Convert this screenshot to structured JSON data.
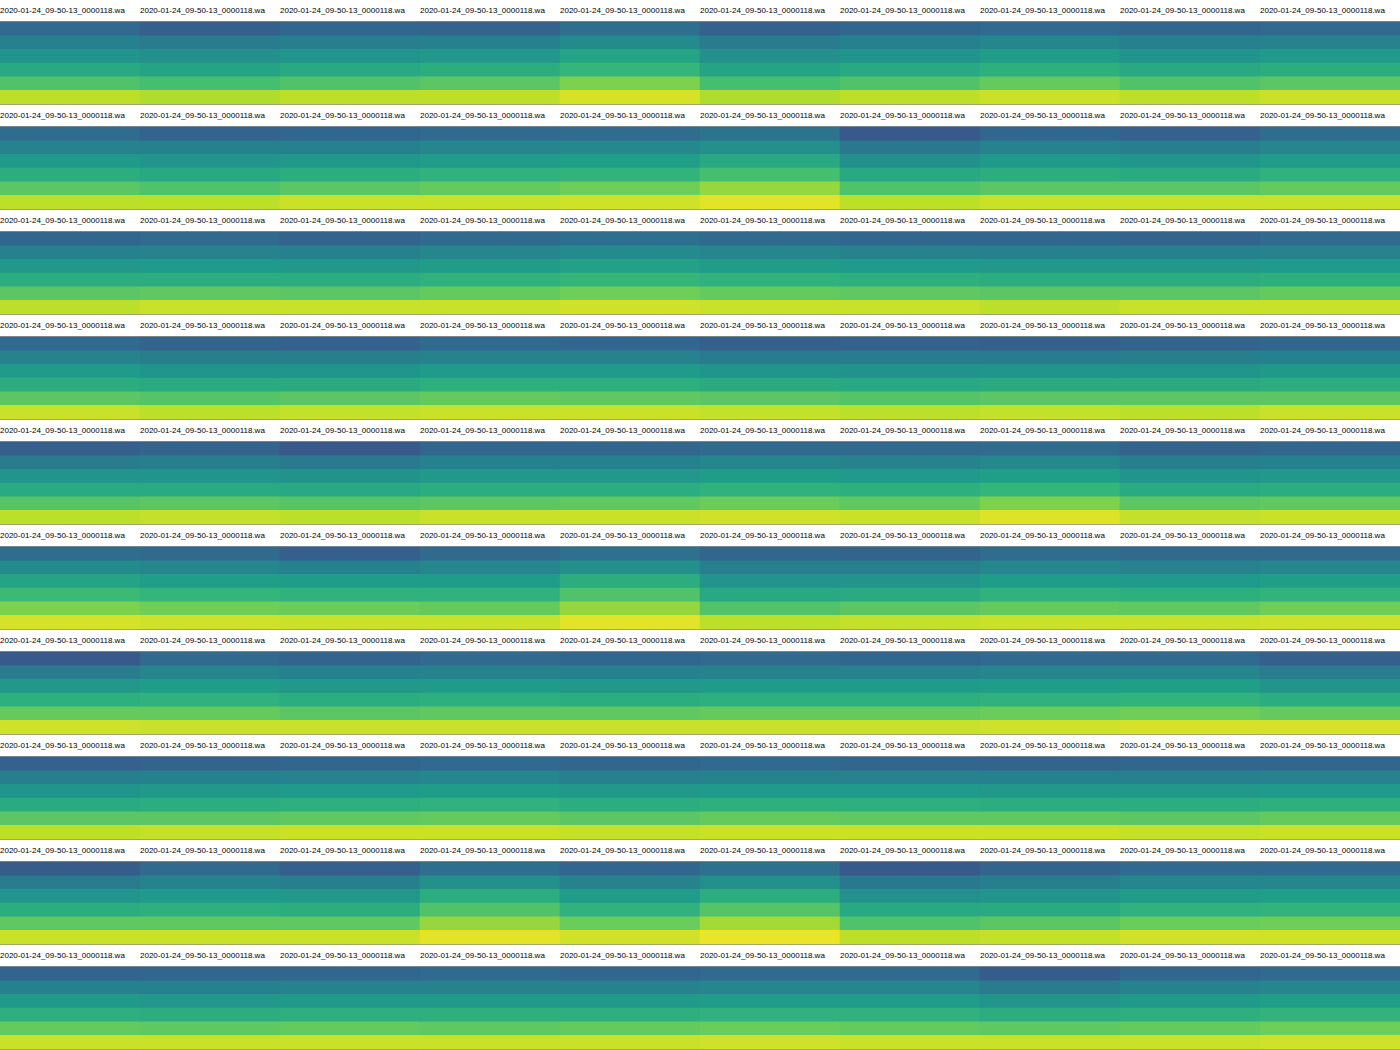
{
  "chart_data": {
    "type": "heatmap",
    "tick_labels": false,
    "color_range": [
      0,
      1
    ],
    "panels": [
      {
        "title": "2020-01-24_09-50-13_0000118.wa",
        "values": [
          0.34,
          0.44,
          0.52,
          0.6,
          0.72,
          0.9
        ]
      },
      {
        "title": "2020-01-24_09-50-13_0000118.wa",
        "values": [
          0.3,
          0.42,
          0.5,
          0.58,
          0.7,
          0.88
        ]
      },
      {
        "title": "2020-01-24_09-50-13_0000118.wa",
        "values": [
          0.33,
          0.43,
          0.52,
          0.6,
          0.72,
          0.9
        ]
      },
      {
        "title": "2020-01-24_09-50-13_0000118.wa",
        "values": [
          0.32,
          0.44,
          0.53,
          0.62,
          0.74,
          0.9
        ]
      },
      {
        "title": "2020-01-24_09-50-13_0000118.wa",
        "values": [
          0.36,
          0.48,
          0.58,
          0.66,
          0.8,
          0.94
        ]
      },
      {
        "title": "2020-01-24_09-50-13_0000118.wa",
        "values": [
          0.31,
          0.42,
          0.5,
          0.58,
          0.7,
          0.88
        ]
      },
      {
        "title": "2020-01-24_09-50-13_0000118.wa",
        "values": [
          0.33,
          0.44,
          0.52,
          0.6,
          0.72,
          0.9
        ]
      },
      {
        "title": "2020-01-24_09-50-13_0000118.wa",
        "values": [
          0.34,
          0.46,
          0.55,
          0.63,
          0.76,
          0.92
        ]
      },
      {
        "title": "2020-01-24_09-50-13_0000118.wa",
        "values": [
          0.33,
          0.44,
          0.52,
          0.6,
          0.72,
          0.9
        ]
      },
      {
        "title": "2020-01-24_09-50-13_0000118.wa",
        "values": [
          0.34,
          0.45,
          0.54,
          0.62,
          0.74,
          0.92
        ]
      },
      {
        "title": "2020-01-24_09-50-13_0000118.wa",
        "values": [
          0.35,
          0.45,
          0.54,
          0.62,
          0.74,
          0.9
        ]
      },
      {
        "title": "2020-01-24_09-50-13_0000118.wa",
        "values": [
          0.32,
          0.44,
          0.52,
          0.6,
          0.72,
          0.9
        ]
      },
      {
        "title": "2020-01-24_09-50-13_0000118.wa",
        "values": [
          0.33,
          0.44,
          0.53,
          0.62,
          0.74,
          0.92
        ]
      },
      {
        "title": "2020-01-24_09-50-13_0000118.wa",
        "values": [
          0.34,
          0.46,
          0.55,
          0.64,
          0.76,
          0.92
        ]
      },
      {
        "title": "2020-01-24_09-50-13_0000118.wa",
        "values": [
          0.35,
          0.47,
          0.56,
          0.65,
          0.78,
          0.93
        ]
      },
      {
        "title": "2020-01-24_09-50-13_0000118.wa",
        "values": [
          0.38,
          0.5,
          0.6,
          0.7,
          0.84,
          0.96
        ]
      },
      {
        "title": "2020-01-24_09-50-13_0000118.wa",
        "values": [
          0.28,
          0.4,
          0.5,
          0.6,
          0.72,
          0.9
        ]
      },
      {
        "title": "2020-01-24_09-50-13_0000118.wa",
        "values": [
          0.33,
          0.45,
          0.54,
          0.62,
          0.74,
          0.92
        ]
      },
      {
        "title": "2020-01-24_09-50-13_0000118.wa",
        "values": [
          0.31,
          0.43,
          0.52,
          0.61,
          0.74,
          0.92
        ]
      },
      {
        "title": "2020-01-24_09-50-13_0000118.wa",
        "values": [
          0.35,
          0.46,
          0.55,
          0.64,
          0.76,
          0.92
        ]
      },
      {
        "title": "2020-01-24_09-50-13_0000118.wa",
        "values": [
          0.33,
          0.44,
          0.53,
          0.62,
          0.74,
          0.9
        ]
      },
      {
        "title": "2020-01-24_09-50-13_0000118.wa",
        "values": [
          0.34,
          0.45,
          0.54,
          0.62,
          0.75,
          0.92
        ]
      },
      {
        "title": "2020-01-24_09-50-13_0000118.wa",
        "values": [
          0.32,
          0.44,
          0.53,
          0.62,
          0.74,
          0.92
        ]
      },
      {
        "title": "2020-01-24_09-50-13_0000118.wa",
        "values": [
          0.34,
          0.46,
          0.55,
          0.64,
          0.76,
          0.92
        ]
      },
      {
        "title": "2020-01-24_09-50-13_0000118.wa",
        "values": [
          0.36,
          0.48,
          0.57,
          0.66,
          0.78,
          0.93
        ]
      },
      {
        "title": "2020-01-24_09-50-13_0000118.wa",
        "values": [
          0.34,
          0.46,
          0.55,
          0.64,
          0.76,
          0.92
        ]
      },
      {
        "title": "2020-01-24_09-50-13_0000118.wa",
        "values": [
          0.33,
          0.45,
          0.54,
          0.63,
          0.75,
          0.92
        ]
      },
      {
        "title": "2020-01-24_09-50-13_0000118.wa",
        "values": [
          0.33,
          0.44,
          0.53,
          0.62,
          0.74,
          0.9
        ]
      },
      {
        "title": "2020-01-24_09-50-13_0000118.wa",
        "values": [
          0.32,
          0.44,
          0.53,
          0.62,
          0.74,
          0.92
        ]
      },
      {
        "title": "2020-01-24_09-50-13_0000118.wa",
        "values": [
          0.34,
          0.45,
          0.54,
          0.63,
          0.76,
          0.92
        ]
      },
      {
        "title": "2020-01-24_09-50-13_0000118.wa",
        "values": [
          0.34,
          0.45,
          0.54,
          0.62,
          0.74,
          0.92
        ]
      },
      {
        "title": "2020-01-24_09-50-13_0000118.wa",
        "values": [
          0.32,
          0.43,
          0.52,
          0.61,
          0.73,
          0.9
        ]
      },
      {
        "title": "2020-01-24_09-50-13_0000118.wa",
        "values": [
          0.31,
          0.43,
          0.52,
          0.61,
          0.74,
          0.91
        ]
      },
      {
        "title": "2020-01-24_09-50-13_0000118.wa",
        "values": [
          0.34,
          0.45,
          0.54,
          0.63,
          0.76,
          0.92
        ]
      },
      {
        "title": "2020-01-24_09-50-13_0000118.wa",
        "values": [
          0.33,
          0.45,
          0.54,
          0.63,
          0.75,
          0.92
        ]
      },
      {
        "title": "2020-01-24_09-50-13_0000118.wa",
        "values": [
          0.3,
          0.42,
          0.52,
          0.61,
          0.74,
          0.91
        ]
      },
      {
        "title": "2020-01-24_09-50-13_0000118.wa",
        "values": [
          0.31,
          0.42,
          0.51,
          0.6,
          0.73,
          0.9
        ]
      },
      {
        "title": "2020-01-24_09-50-13_0000118.wa",
        "values": [
          0.3,
          0.42,
          0.52,
          0.61,
          0.74,
          0.91
        ]
      },
      {
        "title": "2020-01-24_09-50-13_0000118.wa",
        "values": [
          0.32,
          0.43,
          0.52,
          0.61,
          0.74,
          0.9
        ]
      },
      {
        "title": "2020-01-24_09-50-13_0000118.wa",
        "values": [
          0.33,
          0.44,
          0.53,
          0.62,
          0.74,
          0.92
        ]
      },
      {
        "title": "2020-01-24_09-50-13_0000118.wa",
        "values": [
          0.3,
          0.42,
          0.52,
          0.61,
          0.73,
          0.9
        ]
      },
      {
        "title": "2020-01-24_09-50-13_0000118.wa",
        "values": [
          0.32,
          0.43,
          0.52,
          0.61,
          0.74,
          0.91
        ]
      },
      {
        "title": "2020-01-24_09-50-13_0000118.wa",
        "values": [
          0.28,
          0.41,
          0.51,
          0.6,
          0.73,
          0.9
        ]
      },
      {
        "title": "2020-01-24_09-50-13_0000118.wa",
        "values": [
          0.33,
          0.44,
          0.53,
          0.62,
          0.74,
          0.92
        ]
      },
      {
        "title": "2020-01-24_09-50-13_0000118.wa",
        "values": [
          0.33,
          0.44,
          0.53,
          0.62,
          0.75,
          0.92
        ]
      },
      {
        "title": "2020-01-24_09-50-13_0000118.wa",
        "values": [
          0.34,
          0.46,
          0.55,
          0.64,
          0.77,
          0.93
        ]
      },
      {
        "title": "2020-01-24_09-50-13_0000118.wa",
        "values": [
          0.34,
          0.45,
          0.54,
          0.63,
          0.75,
          0.92
        ]
      },
      {
        "title": "2020-01-24_09-50-13_0000118.wa",
        "values": [
          0.35,
          0.47,
          0.56,
          0.66,
          0.8,
          0.95
        ]
      },
      {
        "title": "2020-01-24_09-50-13_0000118.wa",
        "values": [
          0.32,
          0.43,
          0.52,
          0.61,
          0.74,
          0.91
        ]
      },
      {
        "title": "2020-01-24_09-50-13_0000118.wa",
        "values": [
          0.33,
          0.44,
          0.53,
          0.62,
          0.75,
          0.92
        ]
      },
      {
        "title": "2020-01-24_09-50-13_0000118.wa",
        "values": [
          0.35,
          0.48,
          0.58,
          0.68,
          0.8,
          0.94
        ]
      },
      {
        "title": "2020-01-24_09-50-13_0000118.wa",
        "values": [
          0.34,
          0.46,
          0.56,
          0.66,
          0.78,
          0.93
        ]
      },
      {
        "title": "2020-01-24_09-50-13_0000118.wa",
        "values": [
          0.3,
          0.44,
          0.55,
          0.64,
          0.77,
          0.92
        ]
      },
      {
        "title": "2020-01-24_09-50-13_0000118.wa",
        "values": [
          0.34,
          0.46,
          0.55,
          0.64,
          0.76,
          0.92
        ]
      },
      {
        "title": "2020-01-24_09-50-13_0000118.wa",
        "values": [
          0.37,
          0.5,
          0.62,
          0.72,
          0.84,
          0.96
        ]
      },
      {
        "title": "2020-01-24_09-50-13_0000118.wa",
        "values": [
          0.33,
          0.43,
          0.52,
          0.6,
          0.72,
          0.9
        ]
      },
      {
        "title": "2020-01-24_09-50-13_0000118.wa",
        "values": [
          0.32,
          0.43,
          0.52,
          0.61,
          0.74,
          0.91
        ]
      },
      {
        "title": "2020-01-24_09-50-13_0000118.wa",
        "values": [
          0.35,
          0.46,
          0.55,
          0.64,
          0.76,
          0.92
        ]
      },
      {
        "title": "2020-01-24_09-50-13_0000118.wa",
        "values": [
          0.34,
          0.45,
          0.54,
          0.63,
          0.75,
          0.92
        ]
      },
      {
        "title": "2020-01-24_09-50-13_0000118.wa",
        "values": [
          0.34,
          0.46,
          0.56,
          0.65,
          0.78,
          0.93
        ]
      },
      {
        "title": "2020-01-24_09-50-13_0000118.wa",
        "values": [
          0.28,
          0.42,
          0.53,
          0.63,
          0.76,
          0.93
        ]
      },
      {
        "title": "2020-01-24_09-50-13_0000118.wa",
        "values": [
          0.34,
          0.46,
          0.55,
          0.64,
          0.76,
          0.92
        ]
      },
      {
        "title": "2020-01-24_09-50-13_0000118.wa",
        "values": [
          0.32,
          0.44,
          0.53,
          0.62,
          0.74,
          0.92
        ]
      },
      {
        "title": "2020-01-24_09-50-13_0000118.wa",
        "values": [
          0.34,
          0.45,
          0.54,
          0.63,
          0.75,
          0.92
        ]
      },
      {
        "title": "2020-01-24_09-50-13_0000118.wa",
        "values": [
          0.33,
          0.44,
          0.53,
          0.62,
          0.75,
          0.92
        ]
      },
      {
        "title": "2020-01-24_09-50-13_0000118.wa",
        "values": [
          0.34,
          0.45,
          0.54,
          0.63,
          0.76,
          0.92
        ]
      },
      {
        "title": "2020-01-24_09-50-13_0000118.wa",
        "values": [
          0.33,
          0.45,
          0.54,
          0.63,
          0.76,
          0.92
        ]
      },
      {
        "title": "2020-01-24_09-50-13_0000118.wa",
        "values": [
          0.34,
          0.46,
          0.55,
          0.64,
          0.77,
          0.93
        ]
      },
      {
        "title": "2020-01-24_09-50-13_0000118.wa",
        "values": [
          0.34,
          0.46,
          0.56,
          0.65,
          0.78,
          0.94
        ]
      },
      {
        "title": "2020-01-24_09-50-13_0000118.wa",
        "values": [
          0.3,
          0.42,
          0.52,
          0.62,
          0.76,
          0.94
        ]
      },
      {
        "title": "2020-01-24_09-50-13_0000118.wa",
        "values": [
          0.31,
          0.43,
          0.52,
          0.61,
          0.74,
          0.9
        ]
      },
      {
        "title": "2020-01-24_09-50-13_0000118.wa",
        "values": [
          0.32,
          0.44,
          0.53,
          0.62,
          0.74,
          0.91
        ]
      },
      {
        "title": "2020-01-24_09-50-13_0000118.wa",
        "values": [
          0.33,
          0.45,
          0.54,
          0.63,
          0.75,
          0.92
        ]
      },
      {
        "title": "2020-01-24_09-50-13_0000118.wa",
        "values": [
          0.34,
          0.46,
          0.55,
          0.64,
          0.76,
          0.92
        ]
      },
      {
        "title": "2020-01-24_09-50-13_0000118.wa",
        "values": [
          0.33,
          0.44,
          0.53,
          0.62,
          0.74,
          0.91
        ]
      },
      {
        "title": "2020-01-24_09-50-13_0000118.wa",
        "values": [
          0.34,
          0.45,
          0.54,
          0.63,
          0.76,
          0.92
        ]
      },
      {
        "title": "2020-01-24_09-50-13_0000118.wa",
        "values": [
          0.33,
          0.45,
          0.54,
          0.63,
          0.75,
          0.92
        ]
      },
      {
        "title": "2020-01-24_09-50-13_0000118.wa",
        "values": [
          0.32,
          0.44,
          0.53,
          0.62,
          0.75,
          0.92
        ]
      },
      {
        "title": "2020-01-24_09-50-13_0000118.wa",
        "values": [
          0.33,
          0.44,
          0.53,
          0.62,
          0.74,
          0.91
        ]
      },
      {
        "title": "2020-01-24_09-50-13_0000118.wa",
        "values": [
          0.33,
          0.45,
          0.54,
          0.63,
          0.76,
          0.92
        ]
      },
      {
        "title": "2020-01-24_09-50-13_0000118.wa",
        "values": [
          0.29,
          0.42,
          0.52,
          0.62,
          0.75,
          0.92
        ]
      },
      {
        "title": "2020-01-24_09-50-13_0000118.wa",
        "values": [
          0.34,
          0.45,
          0.54,
          0.63,
          0.75,
          0.92
        ]
      },
      {
        "title": "2020-01-24_09-50-13_0000118.wa",
        "values": [
          0.3,
          0.43,
          0.53,
          0.62,
          0.75,
          0.92
        ]
      },
      {
        "title": "2020-01-24_09-50-13_0000118.wa",
        "values": [
          0.36,
          0.5,
          0.62,
          0.72,
          0.84,
          0.96
        ]
      },
      {
        "title": "2020-01-24_09-50-13_0000118.wa",
        "values": [
          0.33,
          0.45,
          0.55,
          0.64,
          0.77,
          0.93
        ]
      },
      {
        "title": "2020-01-24_09-50-13_0000118.wa",
        "values": [
          0.37,
          0.5,
          0.62,
          0.73,
          0.86,
          0.97
        ]
      },
      {
        "title": "2020-01-24_09-50-13_0000118.wa",
        "values": [
          0.28,
          0.4,
          0.5,
          0.6,
          0.72,
          0.9
        ]
      },
      {
        "title": "2020-01-24_09-50-13_0000118.wa",
        "values": [
          0.32,
          0.43,
          0.52,
          0.61,
          0.74,
          0.91
        ]
      },
      {
        "title": "2020-01-24_09-50-13_0000118.wa",
        "values": [
          0.34,
          0.46,
          0.55,
          0.64,
          0.77,
          0.93
        ]
      },
      {
        "title": "2020-01-24_09-50-13_0000118.wa",
        "values": [
          0.34,
          0.46,
          0.56,
          0.65,
          0.78,
          0.93
        ]
      },
      {
        "title": "2020-01-24_09-50-13_0000118.wa",
        "values": [
          0.32,
          0.44,
          0.54,
          0.63,
          0.76,
          0.92
        ]
      },
      {
        "title": "2020-01-24_09-50-13_0000118.wa",
        "values": [
          0.33,
          0.44,
          0.53,
          0.62,
          0.75,
          0.92
        ]
      },
      {
        "title": "2020-01-24_09-50-13_0000118.wa",
        "values": [
          0.33,
          0.45,
          0.54,
          0.63,
          0.76,
          0.92
        ]
      },
      {
        "title": "2020-01-24_09-50-13_0000118.wa",
        "values": [
          0.34,
          0.45,
          0.54,
          0.63,
          0.75,
          0.92
        ]
      },
      {
        "title": "2020-01-24_09-50-13_0000118.wa",
        "values": [
          0.33,
          0.45,
          0.54,
          0.63,
          0.76,
          0.92
        ]
      },
      {
        "title": "2020-01-24_09-50-13_0000118.wa",
        "values": [
          0.34,
          0.46,
          0.55,
          0.64,
          0.77,
          0.93
        ]
      },
      {
        "title": "2020-01-24_09-50-13_0000118.wa",
        "values": [
          0.34,
          0.46,
          0.55,
          0.64,
          0.76,
          0.92
        ]
      },
      {
        "title": "2020-01-24_09-50-13_0000118.wa",
        "values": [
          0.29,
          0.42,
          0.52,
          0.62,
          0.75,
          0.92
        ]
      },
      {
        "title": "2020-01-24_09-50-13_0000118.wa",
        "values": [
          0.33,
          0.45,
          0.54,
          0.63,
          0.76,
          0.92
        ]
      },
      {
        "title": "2020-01-24_09-50-13_0000118.wa",
        "values": [
          0.34,
          0.46,
          0.56,
          0.65,
          0.78,
          0.93
        ]
      }
    ]
  }
}
